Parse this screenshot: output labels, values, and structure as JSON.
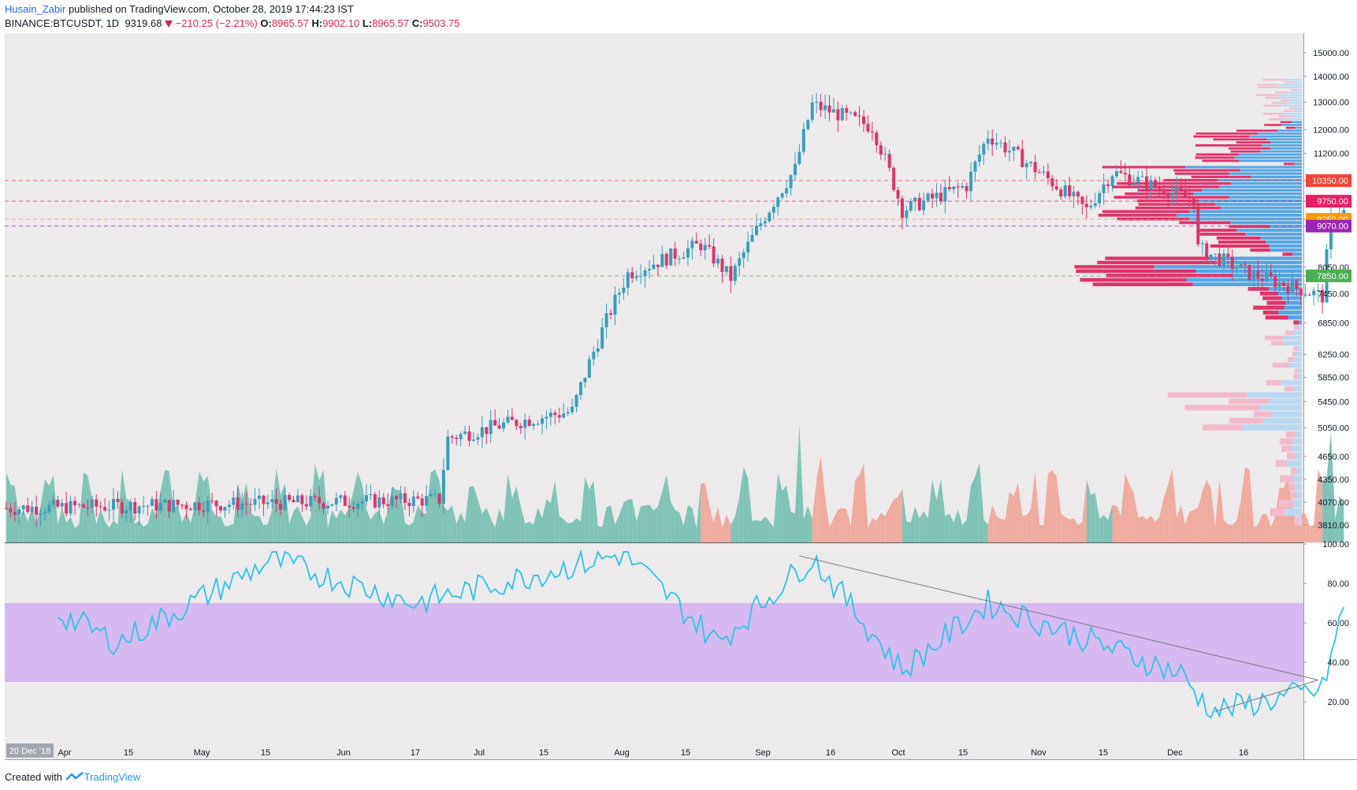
{
  "header": {
    "author": "Husain_Zabir",
    "published_text": " published on TradingView.com, October 28, 2019 17:44:23 IST",
    "symbol": "BINANCE:BTCUSDT, 1D",
    "last": "9319.68",
    "change": "−210.25 (−2.21%)",
    "o_label": "O:",
    "o_value": "8965.57",
    "h_label": "H:",
    "h_value": "9902.10",
    "l_label": "L:",
    "l_value": "8965.57",
    "c_label": "C:",
    "c_value": "9503.75",
    "down_icon": "triangle-down-icon"
  },
  "footer": {
    "created_with": "Created with",
    "brand": "TradingView",
    "logo_icon": "tradingview-logo-icon"
  },
  "colors": {
    "up": "#38a0b9",
    "down": "#e0336b",
    "vol_up": "#7fc3b6",
    "vol_down": "#f0aaa0",
    "rsi_line": "#2ec4e6",
    "rsi_band": "#d6b9ee",
    "bg": "#eceaeb",
    "vp_up": "#52a6e6",
    "vp_down": "#e0336b",
    "vp_up_light": "#bcd9f1",
    "vp_down_light": "#f2bccd"
  },
  "chart_data": [
    {
      "type": "candlestick",
      "series_name": "BINANCE:BTCUSDT, 1D",
      "x_tick_labels": [
        "Apr",
        "15",
        "May",
        "15",
        "Jun",
        "17",
        "Jul",
        "15",
        "Aug",
        "15",
        "Sep",
        "16",
        "Oct",
        "15",
        "Nov",
        "15",
        "Dec",
        "16"
      ],
      "date_badge": "20 Dec '18",
      "y_tick_labels": [
        "15000.00",
        "14000.00",
        "13000.00",
        "12000.00",
        "11200.00",
        "10350.00",
        "9750.00",
        "9250.00",
        "9070.00",
        "8050.00",
        "7850.00",
        "7450.00",
        "6850.00",
        "6250.00",
        "5850.00",
        "5450.00",
        "5050.00",
        "4650.00",
        "4350.00",
        "4070.00",
        "3810.00"
      ],
      "ylim": [
        3600,
        15000
      ],
      "price_lines": [
        {
          "label": "10350.00",
          "value": 10350,
          "color": "#f44336"
        },
        {
          "label": "9750.00",
          "value": 9750,
          "color": "#e91e63"
        },
        {
          "label": "9250.00",
          "value": 9250,
          "color": "#ff9800"
        },
        {
          "label": "9070.00",
          "value": 9070,
          "color": "#9c27b0"
        },
        {
          "label": "7850.00",
          "value": 7850,
          "color": "#4caf50"
        }
      ],
      "key_points": [
        {
          "date": "2018-12-20",
          "close": 4000
        },
        {
          "date": "2019-03-31",
          "close": 4100
        },
        {
          "date": "2019-04-02",
          "close": 4900
        },
        {
          "date": "2019-04-15",
          "close": 5100
        },
        {
          "date": "2019-05-01",
          "close": 5300
        },
        {
          "date": "2019-05-14",
          "close": 7900
        },
        {
          "date": "2019-05-31",
          "close": 8600
        },
        {
          "date": "2019-06-07",
          "close": 7800
        },
        {
          "date": "2019-06-22",
          "close": 10700
        },
        {
          "date": "2019-06-26",
          "close": 12900
        },
        {
          "date": "2019-07-10",
          "close": 12100
        },
        {
          "date": "2019-07-17",
          "close": 9500
        },
        {
          "date": "2019-08-01",
          "close": 10200
        },
        {
          "date": "2019-08-06",
          "close": 11800
        },
        {
          "date": "2019-08-29",
          "close": 9500
        },
        {
          "date": "2019-09-04",
          "close": 10600
        },
        {
          "date": "2019-09-23",
          "close": 9800
        },
        {
          "date": "2019-09-24",
          "close": 8500
        },
        {
          "date": "2019-10-06",
          "close": 7900
        },
        {
          "date": "2019-10-23",
          "close": 7400
        },
        {
          "date": "2019-10-25",
          "close": 9200
        },
        {
          "date": "2019-10-28",
          "close": 9503.75
        }
      ]
    },
    {
      "type": "area",
      "series_name": "Volume",
      "note_colors": "green for up days, salmon for down days"
    },
    {
      "type": "bar",
      "series_name": "Volume profile",
      "orientation": "horizontal"
    },
    {
      "type": "line",
      "series_name": "RSI",
      "y_tick_labels": [
        "100.00",
        "80.00",
        "60.00",
        "40.00",
        "20.00"
      ],
      "ylim": [
        10,
        100
      ],
      "band": [
        30,
        70
      ],
      "key_points": [
        {
          "date": "2019-01-01",
          "value": 65
        },
        {
          "date": "2019-01-15",
          "value": 50
        },
        {
          "date": "2019-02-20",
          "value": 92
        },
        {
          "date": "2019-03-25",
          "value": 70
        },
        {
          "date": "2019-05-13",
          "value": 95
        },
        {
          "date": "2019-06-04",
          "value": 50
        },
        {
          "date": "2019-06-26",
          "value": 93
        },
        {
          "date": "2019-07-17",
          "value": 36
        },
        {
          "date": "2019-08-06",
          "value": 70
        },
        {
          "date": "2019-09-20",
          "value": 34
        },
        {
          "date": "2019-09-27",
          "value": 15
        },
        {
          "date": "2019-10-23",
          "value": 26
        },
        {
          "date": "2019-10-28",
          "value": 68
        }
      ],
      "trendlines": [
        {
          "from": {
            "date": "2019-06-23",
            "value": 94
          },
          "to": {
            "date": "2019-10-22",
            "value": 31
          }
        },
        {
          "from": {
            "date": "2019-09-28",
            "value": 15
          },
          "to": {
            "date": "2019-10-22",
            "value": 31
          }
        }
      ]
    }
  ]
}
